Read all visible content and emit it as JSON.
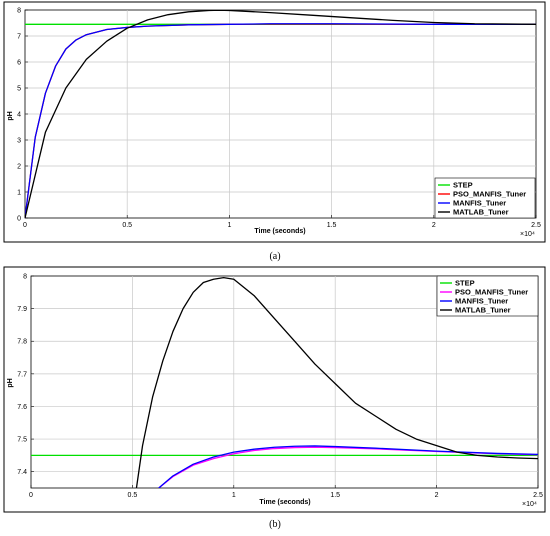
{
  "chart_data": [
    {
      "type": "line",
      "panel_label": "(a)",
      "xlabel": "Time (seconds)",
      "ylabel": "pH",
      "x_multiplier": "×10⁴",
      "xlim": [
        0,
        2.5
      ],
      "ylim": [
        0,
        8
      ],
      "xticks": [
        "0",
        "0.5",
        "1",
        "1.5",
        "2",
        "2.5"
      ],
      "yticks": [
        "0",
        "1",
        "2",
        "3",
        "4",
        "5",
        "6",
        "7",
        "8"
      ],
      "grid": true,
      "legend_position": "bottom-right",
      "series": [
        {
          "name": "STEP",
          "color": "#00e000",
          "x": [
            0,
            2.5
          ],
          "y": [
            7.45,
            7.45
          ]
        },
        {
          "name": "PSO_MANFIS_Tuner",
          "color": "#ff0000",
          "x": [
            0,
            0.05,
            0.1,
            0.15,
            0.2,
            0.25,
            0.3,
            0.4,
            0.5,
            0.6,
            0.8,
            1.0,
            1.2,
            1.5,
            2.0,
            2.5
          ],
          "y": [
            0,
            3.1,
            4.8,
            5.85,
            6.5,
            6.85,
            7.05,
            7.25,
            7.33,
            7.38,
            7.43,
            7.45,
            7.46,
            7.46,
            7.45,
            7.45
          ]
        },
        {
          "name": "MANFIS_Tuner",
          "color": "#0000ff",
          "x": [
            0,
            0.05,
            0.1,
            0.15,
            0.2,
            0.25,
            0.3,
            0.4,
            0.5,
            0.6,
            0.8,
            1.0,
            1.2,
            1.5,
            2.0,
            2.5
          ],
          "y": [
            0,
            3.1,
            4.8,
            5.85,
            6.5,
            6.85,
            7.05,
            7.25,
            7.33,
            7.38,
            7.43,
            7.45,
            7.47,
            7.47,
            7.45,
            7.45
          ]
        },
        {
          "name": "MATLAB_Tuner",
          "color": "#000000",
          "x": [
            0,
            0.1,
            0.2,
            0.3,
            0.4,
            0.5,
            0.6,
            0.7,
            0.8,
            0.9,
            0.95,
            1.0,
            1.2,
            1.4,
            1.6,
            1.8,
            2.0,
            2.2,
            2.5
          ],
          "y": [
            0,
            3.3,
            5.0,
            6.1,
            6.8,
            7.3,
            7.62,
            7.82,
            7.93,
            7.98,
            7.99,
            7.98,
            7.9,
            7.8,
            7.7,
            7.6,
            7.52,
            7.47,
            7.45
          ]
        }
      ]
    },
    {
      "type": "line",
      "panel_label": "(b)",
      "xlabel": "Time (seconds)",
      "ylabel": "pH",
      "x_multiplier": "×10⁴",
      "xlim": [
        0,
        2.5
      ],
      "ylim": [
        7.35,
        8.0
      ],
      "xticks": [
        "0",
        "0.5",
        "1",
        "1.5",
        "2",
        "2.5"
      ],
      "yticks": [
        "7.4",
        "7.5",
        "7.6",
        "7.7",
        "7.8",
        "7.9",
        "8"
      ],
      "grid": true,
      "legend_position": "top-right",
      "series": [
        {
          "name": "STEP",
          "color": "#00e000",
          "x": [
            0,
            2.5
          ],
          "y": [
            7.45,
            7.45
          ]
        },
        {
          "name": "PSO_MANFIS_Tuner",
          "color": "#ff00ff",
          "x": [
            0.63,
            0.7,
            0.8,
            0.9,
            1.0,
            1.1,
            1.2,
            1.3,
            1.4,
            1.5,
            1.7,
            2.0,
            2.3,
            2.5
          ],
          "y": [
            7.35,
            7.385,
            7.42,
            7.44,
            7.455,
            7.465,
            7.471,
            7.474,
            7.475,
            7.474,
            7.47,
            7.462,
            7.455,
            7.452
          ]
        },
        {
          "name": "MANFIS_Tuner",
          "color": "#0000ff",
          "x": [
            0.63,
            0.7,
            0.8,
            0.9,
            1.0,
            1.1,
            1.2,
            1.3,
            1.4,
            1.5,
            1.7,
            2.0,
            2.3,
            2.5
          ],
          "y": [
            7.35,
            7.387,
            7.423,
            7.445,
            7.46,
            7.469,
            7.475,
            7.478,
            7.479,
            7.477,
            7.472,
            7.463,
            7.456,
            7.453
          ]
        },
        {
          "name": "MATLAB_Tuner",
          "color": "#000000",
          "x": [
            0.52,
            0.55,
            0.6,
            0.65,
            0.7,
            0.75,
            0.8,
            0.85,
            0.9,
            0.95,
            1.0,
            1.1,
            1.2,
            1.3,
            1.4,
            1.5,
            1.6,
            1.7,
            1.8,
            1.9,
            2.0,
            2.1,
            2.2,
            2.3,
            2.4,
            2.5
          ],
          "y": [
            7.35,
            7.48,
            7.63,
            7.74,
            7.83,
            7.9,
            7.95,
            7.98,
            7.99,
            7.995,
            7.99,
            7.94,
            7.87,
            7.8,
            7.73,
            7.67,
            7.61,
            7.57,
            7.53,
            7.5,
            7.48,
            7.46,
            7.45,
            7.445,
            7.442,
            7.44
          ]
        }
      ]
    }
  ]
}
